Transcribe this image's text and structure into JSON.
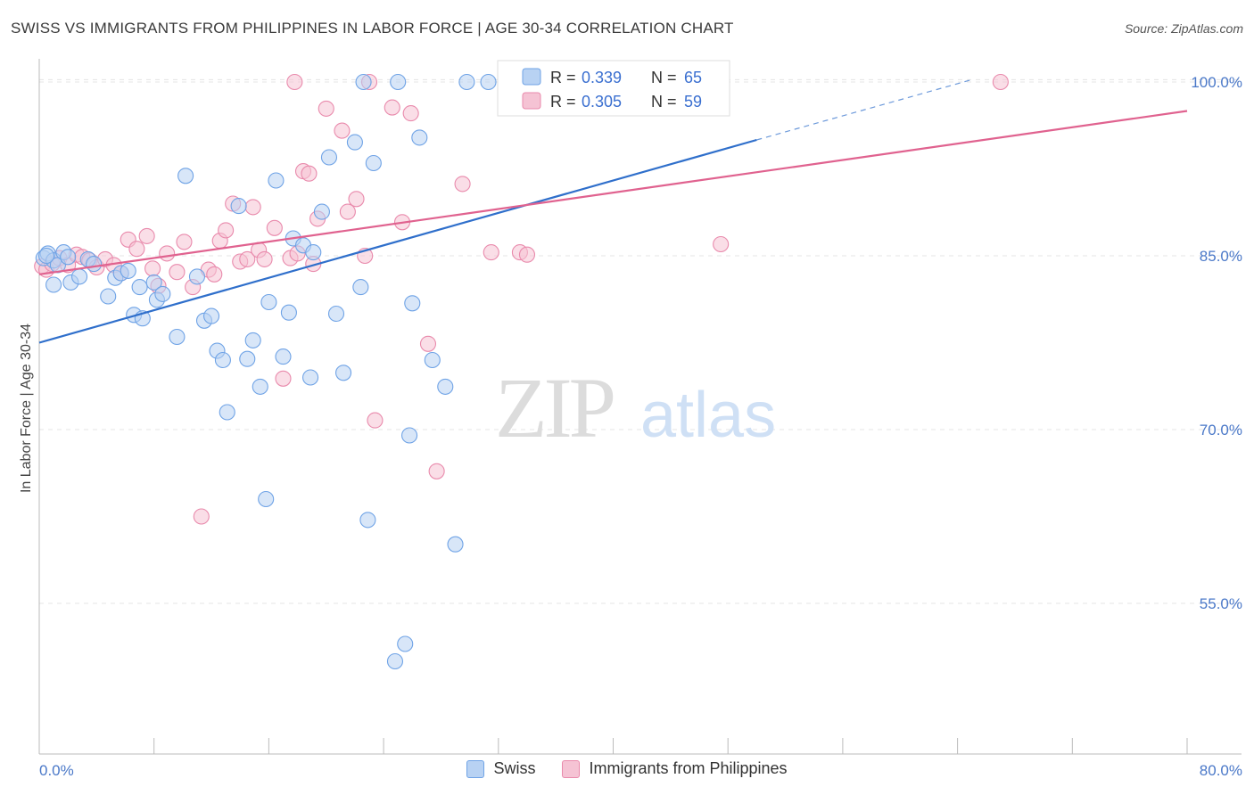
{
  "title": "SWISS VS IMMIGRANTS FROM PHILIPPINES IN LABOR FORCE | AGE 30-34 CORRELATION CHART",
  "source": "Source: ZipAtlas.com",
  "watermark": {
    "zip": "ZIP",
    "atlas": "atlas"
  },
  "colors": {
    "swiss": "#6fa3e6",
    "swiss_fill": "#b8d2f3",
    "swiss_line": "#2f6fcb",
    "phil": "#e98aac",
    "phil_fill": "#f5c3d4",
    "phil_line": "#e0628f",
    "axis_label": "#4a78c8"
  },
  "legend": {
    "swiss": {
      "r_label": "R = ",
      "r_value": "0.339",
      "n_label": "N = ",
      "n_value": "65"
    },
    "phil": {
      "r_label": "R = ",
      "r_value": "0.305",
      "n_label": "N = ",
      "n_value": "59"
    }
  },
  "chart_data": {
    "type": "scatter",
    "title": "SWISS VS IMMIGRANTS FROM PHILIPPINES IN LABOR FORCE | AGE 30-34 CORRELATION CHART",
    "xlabel": "",
    "ylabel": "In Labor Force | Age 30-34",
    "xlim": [
      0,
      80
    ],
    "ylim": [
      42,
      102
    ],
    "x_tick_labels": [
      "0.0%",
      "80.0%"
    ],
    "y_ticks": [
      55,
      70,
      85,
      100
    ],
    "y_tick_labels": [
      "55.0%",
      "70.0%",
      "85.0%",
      "100.0%"
    ],
    "grid": true,
    "legend_position": "top-center",
    "series": [
      {
        "name": "Swiss",
        "trend": {
          "x0": 0,
          "y0": 77.5,
          "x1": 50,
          "y1": 95.0,
          "dashed_to_x": 65,
          "dashed_to_y": 100.2
        },
        "points": [
          [
            0.3,
            84.8
          ],
          [
            0.6,
            85.2
          ],
          [
            1.0,
            84.6
          ],
          [
            1.3,
            84.2
          ],
          [
            1.7,
            85.3
          ],
          [
            2.2,
            82.7
          ],
          [
            2.8,
            83.2
          ],
          [
            3.4,
            84.7
          ],
          [
            3.8,
            84.3
          ],
          [
            4.8,
            81.5
          ],
          [
            5.3,
            83.1
          ],
          [
            5.7,
            83.5
          ],
          [
            6.2,
            83.7
          ],
          [
            6.6,
            79.9
          ],
          [
            7.0,
            82.3
          ],
          [
            7.2,
            79.6
          ],
          [
            8.0,
            82.7
          ],
          [
            8.2,
            81.2
          ],
          [
            8.6,
            81.7
          ],
          [
            9.6,
            78.0
          ],
          [
            10.2,
            91.9
          ],
          [
            11.0,
            83.2
          ],
          [
            11.5,
            79.4
          ],
          [
            12.0,
            79.8
          ],
          [
            12.4,
            76.8
          ],
          [
            12.8,
            76.0
          ],
          [
            13.1,
            71.5
          ],
          [
            13.9,
            89.3
          ],
          [
            14.5,
            76.1
          ],
          [
            14.9,
            77.7
          ],
          [
            15.4,
            73.7
          ],
          [
            15.8,
            64.0
          ],
          [
            16.0,
            81.0
          ],
          [
            16.5,
            91.5
          ],
          [
            17.0,
            76.3
          ],
          [
            17.4,
            80.1
          ],
          [
            17.7,
            86.5
          ],
          [
            18.4,
            85.9
          ],
          [
            18.9,
            74.5
          ],
          [
            19.1,
            85.3
          ],
          [
            19.7,
            88.8
          ],
          [
            20.2,
            93.5
          ],
          [
            20.7,
            80.0
          ],
          [
            21.2,
            74.9
          ],
          [
            22.0,
            94.8
          ],
          [
            22.4,
            82.3
          ],
          [
            22.9,
            62.2
          ],
          [
            23.3,
            93.0
          ],
          [
            24.8,
            50.0
          ],
          [
            25.5,
            51.5
          ],
          [
            25.8,
            69.5
          ],
          [
            26.0,
            80.9
          ],
          [
            26.5,
            95.2
          ],
          [
            27.4,
            76.0
          ],
          [
            28.3,
            73.7
          ],
          [
            29.0,
            60.1
          ],
          [
            29.8,
            100.0
          ],
          [
            31.3,
            100.0
          ],
          [
            22.6,
            100.0
          ],
          [
            25.0,
            100.0
          ],
          [
            38.0,
            100.0
          ],
          [
            46.6,
            100.0
          ],
          [
            2.0,
            84.9
          ],
          [
            1.0,
            82.5
          ],
          [
            0.5,
            85.0
          ]
        ]
      },
      {
        "name": "Immigrants from Philippines",
        "trend": {
          "x0": 0,
          "y0": 83.4,
          "x1": 80,
          "y1": 97.5
        },
        "points": [
          [
            0.2,
            84.1
          ],
          [
            0.5,
            83.8
          ],
          [
            0.9,
            84.3
          ],
          [
            1.4,
            84.8
          ],
          [
            2.0,
            84.2
          ],
          [
            2.6,
            85.1
          ],
          [
            3.0,
            84.9
          ],
          [
            3.5,
            84.6
          ],
          [
            4.0,
            84.0
          ],
          [
            4.6,
            84.7
          ],
          [
            5.2,
            84.2
          ],
          [
            5.7,
            83.5
          ],
          [
            6.2,
            86.4
          ],
          [
            6.8,
            85.6
          ],
          [
            7.5,
            86.7
          ],
          [
            7.9,
            83.9
          ],
          [
            8.3,
            82.4
          ],
          [
            8.9,
            85.2
          ],
          [
            9.6,
            83.6
          ],
          [
            10.1,
            86.2
          ],
          [
            10.7,
            82.3
          ],
          [
            11.3,
            62.5
          ],
          [
            11.8,
            83.8
          ],
          [
            12.2,
            83.4
          ],
          [
            12.6,
            86.3
          ],
          [
            13.0,
            87.2
          ],
          [
            13.5,
            89.5
          ],
          [
            14.0,
            84.5
          ],
          [
            14.5,
            84.7
          ],
          [
            14.9,
            89.2
          ],
          [
            15.3,
            85.5
          ],
          [
            15.7,
            84.7
          ],
          [
            16.4,
            87.4
          ],
          [
            17.0,
            74.4
          ],
          [
            17.5,
            84.8
          ],
          [
            18.0,
            85.2
          ],
          [
            18.4,
            92.3
          ],
          [
            18.8,
            92.1
          ],
          [
            19.1,
            84.3
          ],
          [
            19.4,
            88.2
          ],
          [
            20.0,
            97.7
          ],
          [
            21.1,
            95.8
          ],
          [
            21.5,
            88.8
          ],
          [
            22.1,
            89.9
          ],
          [
            22.7,
            85.0
          ],
          [
            23.4,
            70.8
          ],
          [
            24.6,
            97.8
          ],
          [
            25.3,
            87.9
          ],
          [
            25.9,
            97.3
          ],
          [
            27.1,
            77.4
          ],
          [
            27.7,
            66.4
          ],
          [
            29.5,
            91.2
          ],
          [
            31.5,
            85.3
          ],
          [
            33.5,
            85.3
          ],
          [
            34.0,
            85.1
          ],
          [
            47.5,
            86.0
          ],
          [
            67.0,
            100.0
          ],
          [
            17.8,
            100.0
          ],
          [
            23.0,
            100.0
          ]
        ]
      }
    ]
  }
}
